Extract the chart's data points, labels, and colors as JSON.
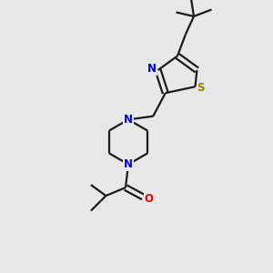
{
  "background_color": "#e8e8e8",
  "bond_color": "#1a1a1a",
  "N_color": "#0000ee",
  "S_color": "#888800",
  "O_color": "#ee0000",
  "line_width": 1.6,
  "figsize": [
    3.0,
    3.0
  ],
  "dpi": 100,
  "xlim": [
    0,
    10
  ],
  "ylim": [
    0,
    10
  ]
}
